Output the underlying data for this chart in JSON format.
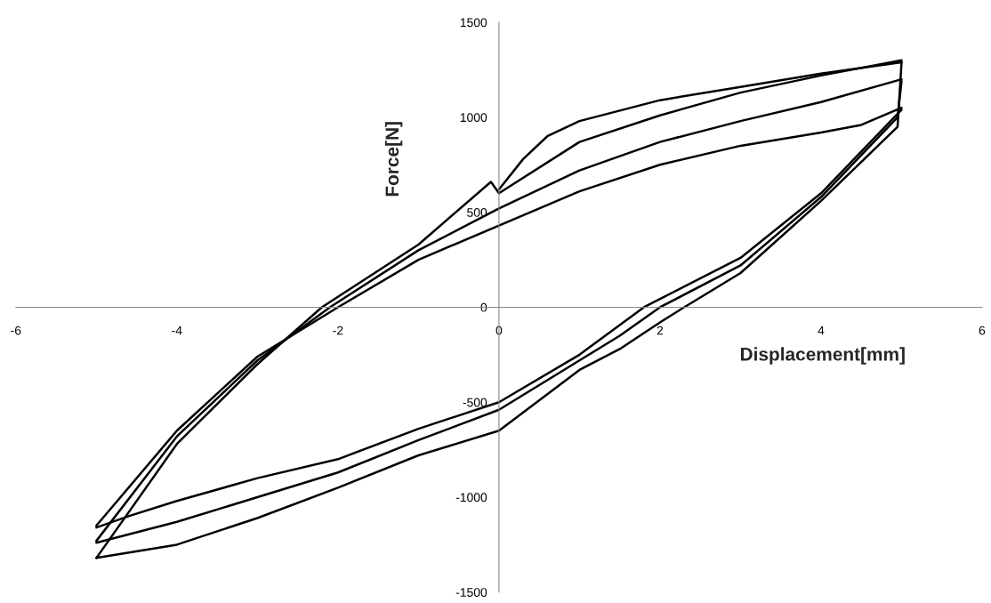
{
  "chart_data": {
    "type": "line",
    "xlabel": "Displacement[mm]",
    "ylabel": "Force[N]",
    "xlim": [
      -6,
      6
    ],
    "xticks": [
      -6,
      -4,
      -2,
      0,
      2,
      4,
      6
    ],
    "ylim": [
      -1500,
      1500
    ],
    "yticks": [
      -1500,
      -1000,
      -500,
      0,
      500,
      1000,
      1500
    ],
    "line_style": "solid",
    "series": [
      {
        "color": "#000000",
        "x": [
          0,
          0.3,
          0.6,
          1,
          2,
          3,
          4,
          5
        ],
        "values": [
          620,
          780,
          900,
          980,
          1090,
          1160,
          1230,
          1290
        ]
      },
      {
        "color": "#000000",
        "x": [
          -5,
          -4,
          -3,
          -2.2,
          -1,
          -0.1,
          0,
          1,
          2,
          3,
          4,
          5
        ],
        "values": [
          -1320,
          -720,
          -300,
          0,
          330,
          660,
          600,
          870,
          1010,
          1130,
          1220,
          1300
        ]
      },
      {
        "color": "#000000",
        "x": [
          -5,
          -4,
          -3,
          -2,
          -1,
          0,
          1,
          1.5,
          2,
          2.3,
          3,
          4,
          4.95,
          5
        ],
        "values": [
          -1320,
          -1250,
          -1110,
          -950,
          -780,
          -650,
          -330,
          -220,
          -80,
          0,
          180,
          560,
          950,
          1290
        ]
      },
      {
        "color": "#000000",
        "x": [
          -5,
          -4,
          -3,
          -2.1,
          -1,
          0,
          1,
          2,
          3,
          4,
          5
        ],
        "values": [
          -1230,
          -680,
          -280,
          0,
          300,
          520,
          720,
          870,
          980,
          1080,
          1200
        ]
      },
      {
        "color": "#000000",
        "x": [
          -5,
          -4,
          -3,
          -2,
          -1,
          0,
          1,
          1.5,
          2,
          3,
          4,
          4.95,
          5
        ],
        "values": [
          -1240,
          -1130,
          -1000,
          -870,
          -700,
          -540,
          -280,
          -150,
          0,
          220,
          580,
          1000,
          1190
        ]
      },
      {
        "color": "#000000",
        "x": [
          -5,
          -4,
          -3,
          -2,
          -1,
          0,
          1,
          2,
          3,
          4,
          4.5,
          5
        ],
        "values": [
          -1150,
          -650,
          -260,
          0,
          250,
          430,
          610,
          750,
          850,
          920,
          960,
          1050
        ]
      },
      {
        "color": "#000000",
        "x": [
          -5,
          -4.6,
          -4,
          -3,
          -2,
          -1,
          0,
          1,
          1.8,
          3,
          4,
          5
        ],
        "values": [
          -1160,
          -1100,
          -1020,
          -900,
          -800,
          -640,
          -500,
          -250,
          0,
          260,
          600,
          1040
        ]
      }
    ]
  }
}
